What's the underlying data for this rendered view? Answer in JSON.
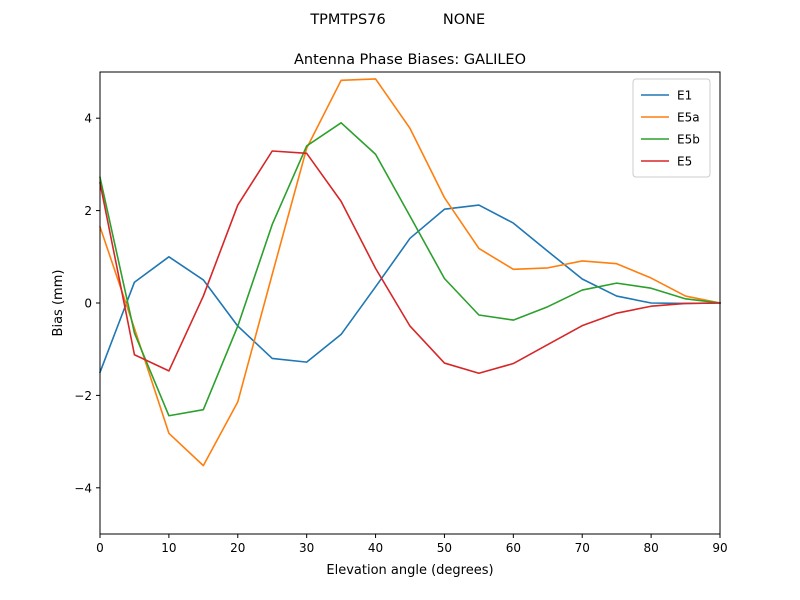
{
  "figure": {
    "suptitle_left": "TPMTPS76",
    "suptitle_right": "NONE"
  },
  "chart_data": {
    "type": "line",
    "title": "Antenna Phase Biases: GALILEO",
    "xlabel": "Elevation angle (degrees)",
    "ylabel": "Bias (mm)",
    "xlim": [
      0,
      90
    ],
    "ylim": [
      -5,
      5
    ],
    "xticks": [
      0,
      10,
      20,
      30,
      40,
      50,
      60,
      70,
      80,
      90
    ],
    "yticks": [
      -4,
      -2,
      0,
      2,
      4
    ],
    "grid": false,
    "legend_position": "top-right",
    "x": [
      0,
      5,
      10,
      15,
      20,
      25,
      30,
      35,
      40,
      45,
      50,
      55,
      60,
      65,
      70,
      75,
      80,
      85,
      90
    ],
    "series": [
      {
        "name": "E1",
        "color": "#1f77b4",
        "values": [
          -1.5,
          0.45,
          1.0,
          0.5,
          -0.5,
          -1.2,
          -1.28,
          -0.68,
          0.35,
          1.4,
          2.03,
          2.12,
          1.73,
          1.12,
          0.52,
          0.15,
          0.0,
          -0.01,
          0.0
        ]
      },
      {
        "name": "E5a",
        "color": "#ff7f0e",
        "values": [
          1.65,
          -0.55,
          -2.82,
          -3.52,
          -2.14,
          0.62,
          3.35,
          4.82,
          4.85,
          3.78,
          2.28,
          1.18,
          0.73,
          0.76,
          0.91,
          0.85,
          0.54,
          0.15,
          0.0
        ]
      },
      {
        "name": "E5b",
        "color": "#2ca02c",
        "values": [
          2.72,
          -0.65,
          -2.44,
          -2.31,
          -0.5,
          1.7,
          3.4,
          3.9,
          3.22,
          1.88,
          0.53,
          -0.26,
          -0.37,
          -0.08,
          0.28,
          0.43,
          0.32,
          0.09,
          0.0
        ]
      },
      {
        "name": "E5",
        "color": "#d62728",
        "values": [
          2.6,
          -1.12,
          -1.47,
          0.15,
          2.12,
          3.29,
          3.24,
          2.2,
          0.75,
          -0.5,
          -1.3,
          -1.52,
          -1.31,
          -0.9,
          -0.49,
          -0.22,
          -0.07,
          -0.01,
          0.0
        ]
      }
    ]
  }
}
